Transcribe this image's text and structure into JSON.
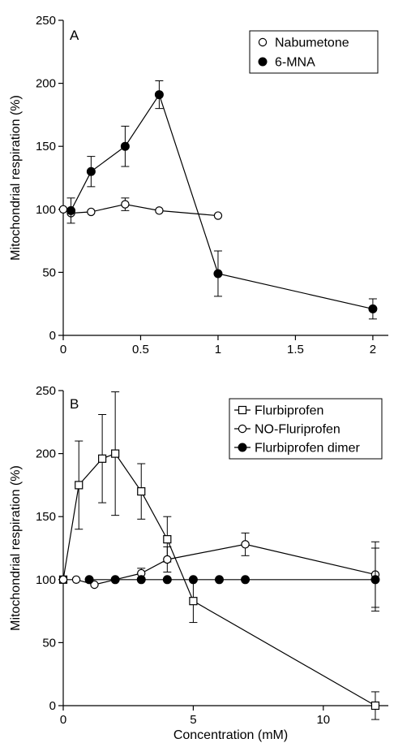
{
  "chart_data": [
    {
      "type": "line",
      "panel_label": "A",
      "xlabel": "",
      "ylabel": "Mitochondrial respiration (%)",
      "xlim": [
        0,
        2.1
      ],
      "ylim": [
        0,
        250
      ],
      "xticks": [
        0,
        0.5,
        1,
        1.5,
        2
      ],
      "xtick_labels": [
        "0",
        "0.5",
        "1",
        "1.5",
        "2"
      ],
      "yticks": [
        0,
        50,
        100,
        150,
        200,
        250
      ],
      "ytick_labels": [
        "0",
        "50",
        "100",
        "150",
        "200",
        "250"
      ],
      "grid": false,
      "legend_position": "top-right",
      "series": [
        {
          "name": "Nabumetone",
          "marker": "circle-open",
          "x": [
            0,
            0.05,
            0.18,
            0.4,
            0.62,
            1.0
          ],
          "y": [
            100,
            97,
            98,
            104,
            99,
            95
          ],
          "err": [
            0,
            0,
            0,
            5,
            0,
            0
          ]
        },
        {
          "name": "6-MNA",
          "marker": "circle-filled",
          "x": [
            0.05,
            0.18,
            0.4,
            0.62,
            1.0,
            2.0
          ],
          "y": [
            99,
            130,
            150,
            191,
            49,
            21
          ],
          "err": [
            10,
            12,
            16,
            11,
            18,
            8
          ]
        }
      ]
    },
    {
      "type": "line",
      "panel_label": "B",
      "xlabel": "Concentration (mM)",
      "ylabel": "Mitochondrial respiration (%)",
      "xlim": [
        0,
        12.5
      ],
      "ylim": [
        0,
        250
      ],
      "xticks": [
        0,
        5,
        10
      ],
      "xtick_labels": [
        "0",
        "5",
        "10"
      ],
      "yticks": [
        0,
        50,
        100,
        150,
        200,
        250
      ],
      "ytick_labels": [
        "0",
        "50",
        "100",
        "150",
        "200",
        "250"
      ],
      "grid": false,
      "legend_position": "top-right",
      "series": [
        {
          "name": "Flurbiprofen",
          "marker": "square-open",
          "x": [
            0,
            0.6,
            1.5,
            2.0,
            3.0,
            4.0,
            5.0,
            12.0
          ],
          "y": [
            100,
            175,
            196,
            200,
            170,
            132,
            83,
            0
          ],
          "err": [
            0,
            35,
            35,
            49,
            22,
            18,
            17,
            11
          ]
        },
        {
          "name": "NO-Fluriprofen",
          "marker": "circle-open",
          "x": [
            0,
            0.5,
            1.2,
            2.0,
            3.0,
            4.0,
            7.0,
            12.0
          ],
          "y": [
            100,
            100,
            96,
            100,
            105,
            116,
            128,
            104
          ],
          "err": [
            0,
            0,
            0,
            0,
            4,
            10,
            9,
            26
          ]
        },
        {
          "name": "Flurbiprofen dimer",
          "marker": "circle-filled",
          "x": [
            1.0,
            2.0,
            3.0,
            4.0,
            5.0,
            6.0,
            7.0,
            12.0
          ],
          "y": [
            100,
            100,
            100,
            100,
            100,
            100,
            100,
            100
          ],
          "err": [
            0,
            0,
            0,
            0,
            0,
            0,
            0,
            25
          ]
        }
      ]
    }
  ]
}
